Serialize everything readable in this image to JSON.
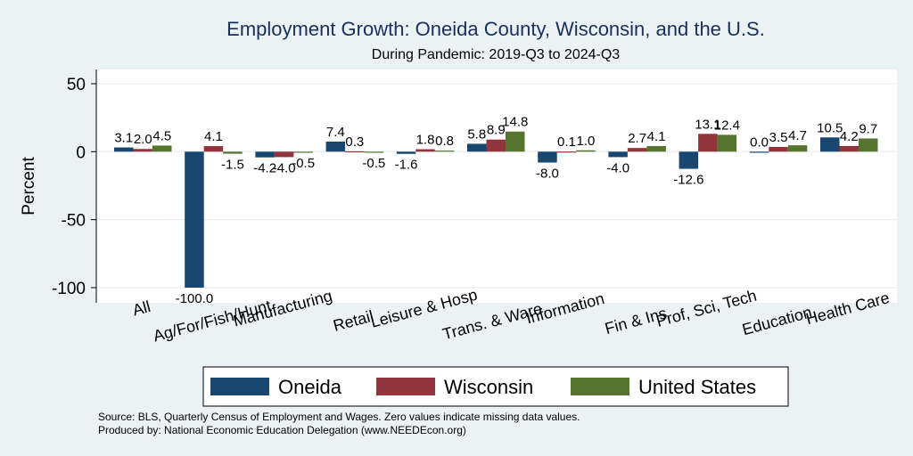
{
  "chart_data": {
    "type": "bar",
    "title": "Employment Growth: Oneida County, Wisconsin, and the U.S.",
    "subtitle": "During Pandemic: 2019-Q3 to 2024-Q3",
    "ylabel": "Percent",
    "xlabel": "",
    "ylim": [
      -110,
      58
    ],
    "yticks": [
      50,
      0,
      -50,
      -100
    ],
    "grid": true,
    "legend_position": "bottom",
    "categories": [
      "All",
      "Ag/For/Fish/Hunt",
      "Manufacturing",
      "Retail",
      "Leisure & Hosp",
      "Trans. & Ware.",
      "Information",
      "Fin & Ins",
      "Prof, Sci, Tech",
      "Education",
      "Health Care"
    ],
    "series": [
      {
        "name": "Oneida",
        "color": "#1a476f",
        "values": [
          3.1,
          -100.0,
          -4.2,
          7.4,
          -1.6,
          5.8,
          -8.0,
          -4.0,
          -12.6,
          0.0,
          10.5
        ],
        "labels": [
          "3.1",
          "-100.0",
          "-4.2",
          "7.4",
          "-1.6",
          "5.8",
          "-8.0",
          "-4.0",
          "-12.6",
          "0.0",
          "10.5"
        ]
      },
      {
        "name": "Wisconsin",
        "color": "#90353b",
        "values": [
          2.0,
          4.1,
          -4.0,
          0.3,
          1.8,
          8.9,
          0.1,
          2.7,
          13.1,
          3.5,
          4.2
        ],
        "labels": [
          "2.0",
          "4.1",
          "-4.0",
          "0.3",
          "1.8",
          "8.9",
          "0.1",
          "2.7",
          "13.1",
          "3.5",
          "4.2"
        ]
      },
      {
        "name": "United States",
        "color": "#55752f",
        "values": [
          4.5,
          -1.5,
          -0.5,
          -0.5,
          0.8,
          14.8,
          1.0,
          4.1,
          12.4,
          4.7,
          9.7
        ],
        "labels": [
          "4.5",
          "-1.5",
          "-0.5",
          "-0.5",
          "0.8",
          "14.8",
          "1.0",
          "4.1",
          "12.4",
          "4.7",
          "9.7"
        ]
      }
    ]
  },
  "footnotes": {
    "source": "Source: BLS, Quarterly Census of Employment and Wages. Zero values indicate missing data values.",
    "produced": "Produced by: National Economic Education Delegation (www.NEEDEcon.org)"
  }
}
